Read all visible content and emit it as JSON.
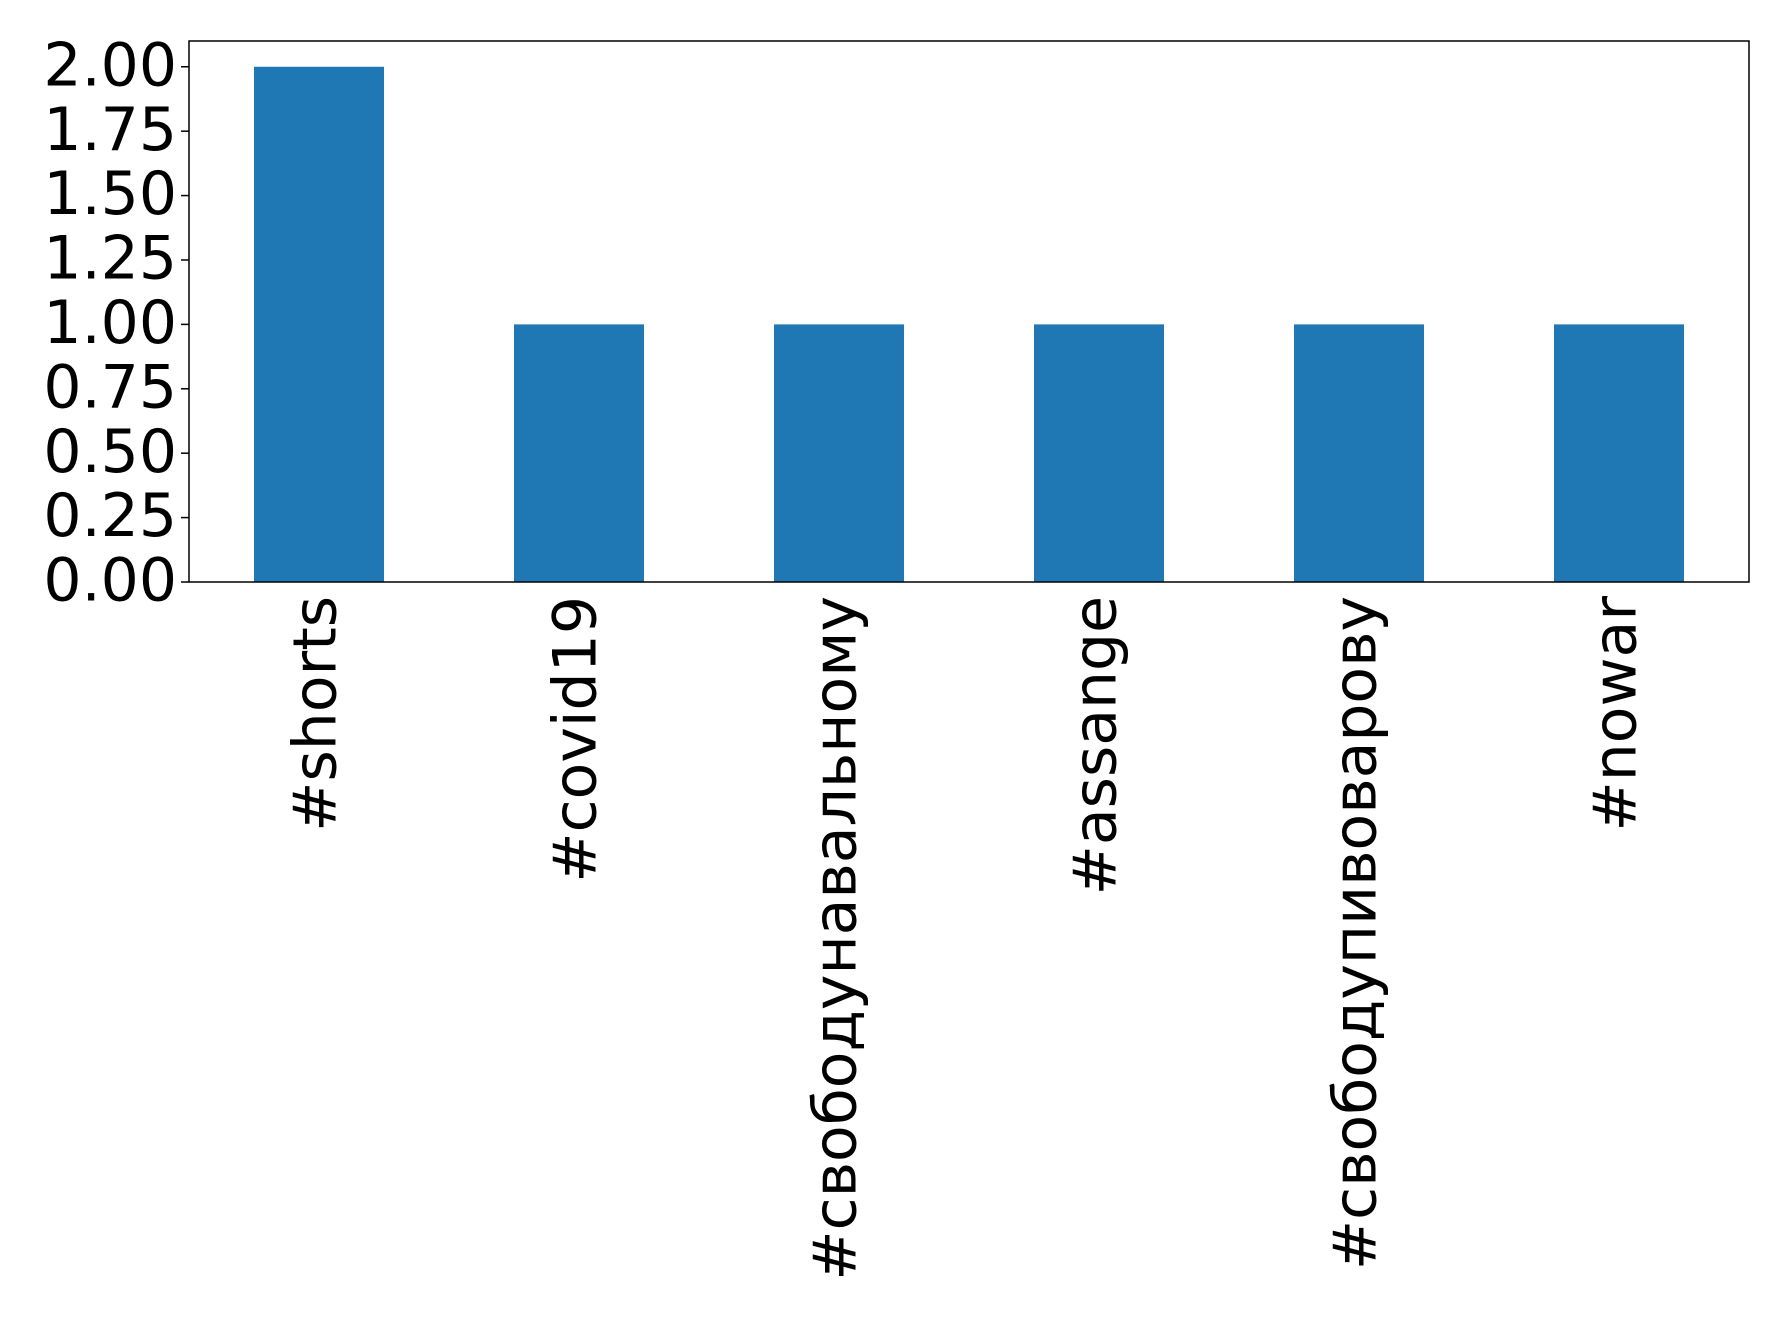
{
  "chart_data": {
    "type": "bar",
    "categories": [
      "#shorts",
      "#covid19",
      "#свободунавальному",
      "#assange",
      "#свободупивоварову",
      "#nowar"
    ],
    "values": [
      2,
      1,
      1,
      1,
      1,
      1
    ],
    "color": "#1f77b4",
    "ylim": [
      0,
      2.1
    ],
    "yticks": [
      {
        "value": 0,
        "label": "0.00"
      },
      {
        "value": 0.25,
        "label": "0.25"
      },
      {
        "value": 0.5,
        "label": "0.50"
      },
      {
        "value": 0.75,
        "label": "0.75"
      },
      {
        "value": 1,
        "label": "1.00"
      },
      {
        "value": 1.25,
        "label": "1.25"
      },
      {
        "value": 1.5,
        "label": "1.50"
      },
      {
        "value": 1.75,
        "label": "1.75"
      },
      {
        "value": 2,
        "label": "2.00"
      }
    ],
    "grid": false
  }
}
